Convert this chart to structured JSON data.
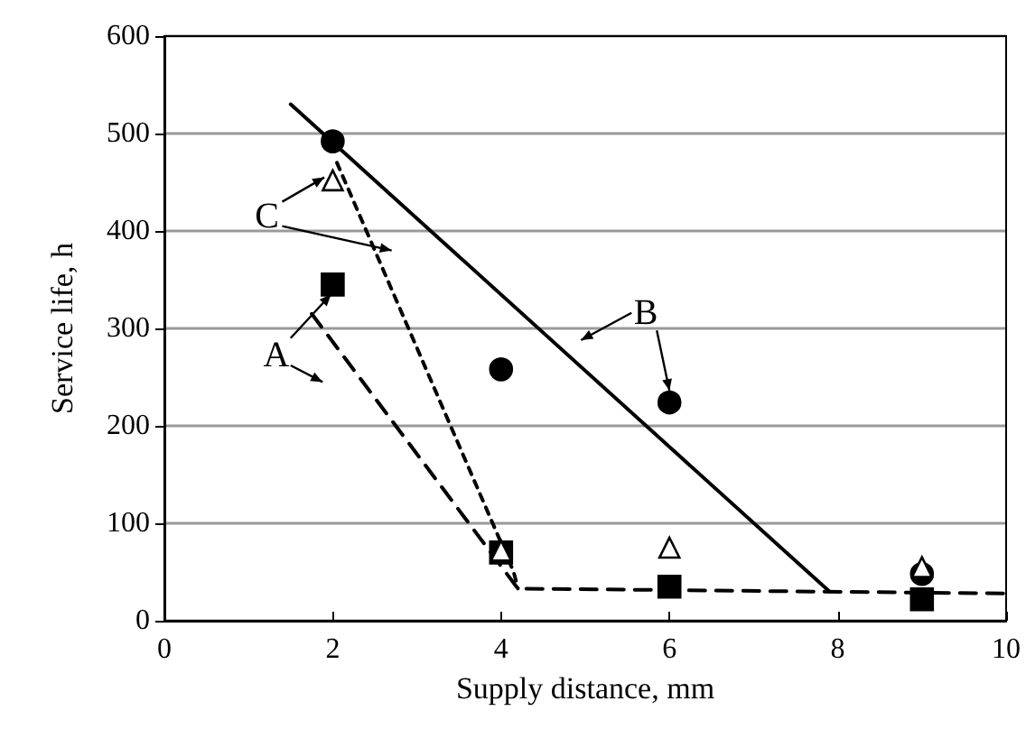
{
  "chart_data": {
    "type": "scatter",
    "xlabel": "Supply distance, mm",
    "ylabel": "Service life, h",
    "xlim": [
      0,
      10
    ],
    "xticks": [
      0,
      2,
      4,
      6,
      8,
      10
    ],
    "ylim": [
      0,
      600
    ],
    "yticks": [
      0,
      100,
      200,
      300,
      400,
      500,
      600
    ],
    "grid": "y",
    "series": [
      {
        "marker": "circle",
        "color": "#000000",
        "x": [
          2,
          4,
          6,
          9
        ],
        "values": [
          492,
          258,
          224,
          48
        ]
      },
      {
        "marker": "square",
        "color": "#000000",
        "x": [
          2,
          4,
          6,
          9
        ],
        "values": [
          345,
          70,
          35,
          22
        ]
      },
      {
        "marker": "triangle",
        "color": "#ffffff",
        "x": [
          2,
          4,
          6,
          9
        ],
        "values": [
          452,
          72,
          75,
          55
        ]
      },
      {
        "type": "line",
        "marker": "none",
        "line_style": "solid",
        "color": "#000000",
        "x": [
          1.5,
          7.9
        ],
        "values": [
          530,
          30
        ]
      },
      {
        "type": "line",
        "marker": "none",
        "line_style": "dashed",
        "color": "#000000",
        "x": [
          1.75,
          4.2,
          10
        ],
        "values": [
          315,
          33,
          28
        ]
      },
      {
        "type": "line",
        "marker": "none",
        "line_style": "dotted",
        "color": "#000000",
        "x": [
          2.05,
          4.15,
          4.2
        ],
        "values": [
          470,
          50,
          33
        ]
      }
    ],
    "annotations": [
      "A",
      "B",
      "C"
    ]
  }
}
